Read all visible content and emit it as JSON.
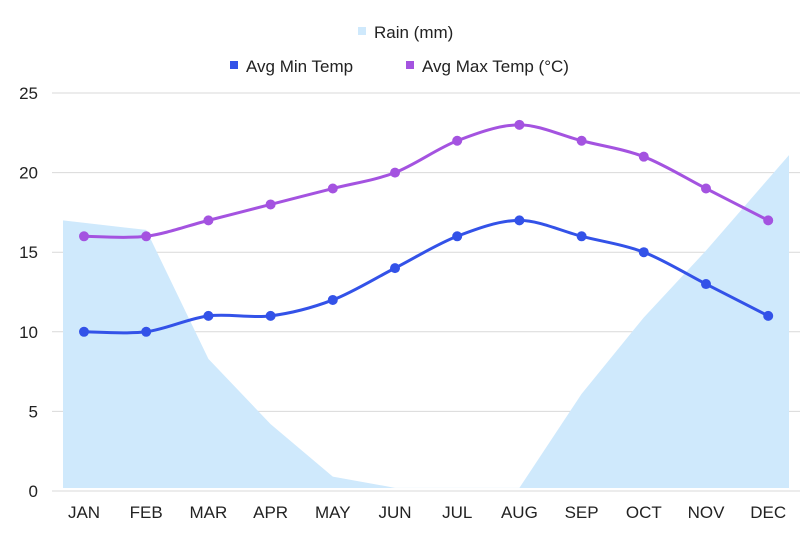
{
  "chart_data": {
    "type": "line",
    "categories": [
      "JAN",
      "FEB",
      "MAR",
      "APR",
      "MAY",
      "JUN",
      "JUL",
      "AUG",
      "SEP",
      "OCT",
      "NOV",
      "DEC"
    ],
    "ylim": [
      0,
      25
    ],
    "yticks": [
      "0",
      "5",
      "10",
      "15",
      "20",
      "25"
    ],
    "ytick_values": [
      0,
      5,
      10,
      15,
      20,
      25
    ],
    "grid": true,
    "legend_position": "top-center",
    "series": [
      {
        "name": "Rain (mm)",
        "type": "area",
        "color": "#cfe9fc",
        "values": [
          17,
          16.4,
          8.3,
          4.2,
          0.9,
          0.2,
          0.2,
          0.2,
          6.1,
          10.9,
          15.1,
          21.1
        ]
      },
      {
        "name": "Avg Min Temp",
        "type": "line",
        "color": "#3352e8",
        "values": [
          10,
          10,
          11,
          11,
          12,
          14,
          16,
          17,
          16,
          15,
          13,
          11
        ]
      },
      {
        "name": "Avg Max Temp (°C)",
        "type": "line",
        "color": "#a453e0",
        "values": [
          16,
          16,
          17,
          18,
          19,
          20,
          22,
          23,
          22,
          21,
          19,
          17
        ]
      }
    ]
  }
}
